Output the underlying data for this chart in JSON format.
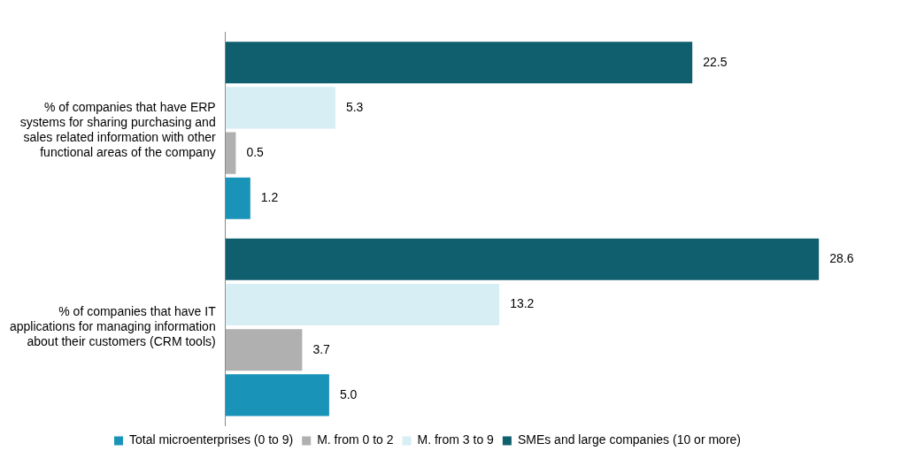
{
  "chart_data": {
    "type": "bar",
    "orientation": "horizontal",
    "categories": [
      "% of companies that have ERP systems for sharing purchasing and sales related information with other functional areas of the company",
      "% of companies that have IT applications for managing information about their customers (CRM tools)"
    ],
    "series": [
      {
        "name": "Total microenterprises (0 to 9)",
        "color": "#1a93b8",
        "values": [
          1.2,
          5.0
        ],
        "value_labels": [
          "1.2",
          "5.0"
        ]
      },
      {
        "name": "M. from 0 to 2",
        "color": "#b0b0b0",
        "values": [
          0.5,
          3.7
        ],
        "value_labels": [
          "0.5",
          "3.7"
        ]
      },
      {
        "name": "M. from 3 to 9",
        "color": "#d8eef5",
        "values": [
          5.3,
          13.2
        ],
        "value_labels": [
          "5.3",
          "13.2"
        ]
      },
      {
        "name": "SMEs and large companies (10 or more)",
        "color": "#0f5f6e",
        "values": [
          22.5,
          28.6
        ],
        "value_labels": [
          "22.5",
          "28.6"
        ]
      }
    ],
    "legend": "bottom",
    "grid": false
  }
}
